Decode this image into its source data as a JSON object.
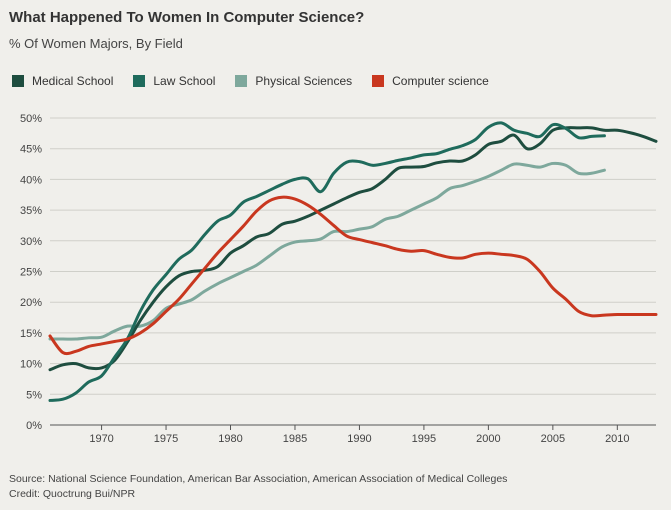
{
  "title": "What Happened To Women In Computer Science?",
  "subtitle": "% Of Women Majors, By Field",
  "source": {
    "line1": "Source: National Science Foundation, American Bar Association, American Association of Medical Colleges",
    "line2": "Credit: Quoctrung Bui/NPR"
  },
  "chart_data": {
    "type": "line",
    "title": "What Happened To Women In Computer Science?",
    "subtitle": "% Of Women Majors, By Field",
    "xlabel": "",
    "ylabel": "",
    "xlim": [
      1966,
      2013
    ],
    "ylim": [
      0,
      50
    ],
    "x_ticks": [
      1970,
      1975,
      1980,
      1985,
      1990,
      1995,
      2000,
      2005,
      2010
    ],
    "y_ticks": [
      0,
      5,
      10,
      15,
      20,
      25,
      30,
      35,
      40,
      45,
      50
    ],
    "y_tick_labels": [
      "0%",
      "5%",
      "10%",
      "15%",
      "20%",
      "25%",
      "30%",
      "35%",
      "40%",
      "45%",
      "50%"
    ],
    "grid": "horizontal",
    "legend_position": "top-left",
    "series": [
      {
        "name": "Medical School",
        "color": "#1e4d3f",
        "points": [
          [
            1966,
            9
          ],
          [
            1967,
            9.8
          ],
          [
            1968,
            10
          ],
          [
            1969,
            9.3
          ],
          [
            1970,
            9.3
          ],
          [
            1971,
            10.5
          ],
          [
            1972,
            13.5
          ],
          [
            1973,
            17
          ],
          [
            1974,
            20
          ],
          [
            1975,
            22.5
          ],
          [
            1976,
            24.3
          ],
          [
            1977,
            25
          ],
          [
            1978,
            25.2
          ],
          [
            1979,
            25.8
          ],
          [
            1980,
            28
          ],
          [
            1981,
            29.2
          ],
          [
            1982,
            30.6
          ],
          [
            1983,
            31.2
          ],
          [
            1984,
            32.7
          ],
          [
            1985,
            33.2
          ],
          [
            1986,
            34
          ],
          [
            1987,
            35
          ],
          [
            1988,
            36
          ],
          [
            1989,
            37
          ],
          [
            1990,
            37.9
          ],
          [
            1991,
            38.5
          ],
          [
            1992,
            40
          ],
          [
            1993,
            41.8
          ],
          [
            1994,
            42
          ],
          [
            1995,
            42.1
          ],
          [
            1996,
            42.7
          ],
          [
            1997,
            43
          ],
          [
            1998,
            43
          ],
          [
            1999,
            44
          ],
          [
            2000,
            45.7
          ],
          [
            2001,
            46.2
          ],
          [
            2002,
            47.2
          ],
          [
            2003,
            45
          ],
          [
            2004,
            45.8
          ],
          [
            2005,
            48
          ],
          [
            2006,
            48.4
          ],
          [
            2007,
            48.4
          ],
          [
            2008,
            48.4
          ],
          [
            2009,
            48
          ],
          [
            2010,
            48
          ],
          [
            2011,
            47.6
          ],
          [
            2012,
            47
          ],
          [
            2013,
            46.2
          ]
        ]
      },
      {
        "name": "Law School",
        "color": "#1f6b5c",
        "points": [
          [
            1966,
            4
          ],
          [
            1967,
            4.2
          ],
          [
            1968,
            5.2
          ],
          [
            1969,
            7
          ],
          [
            1970,
            8
          ],
          [
            1971,
            11
          ],
          [
            1972,
            14
          ],
          [
            1973,
            18.5
          ],
          [
            1974,
            22
          ],
          [
            1975,
            24.5
          ],
          [
            1976,
            27
          ],
          [
            1977,
            28.5
          ],
          [
            1978,
            31
          ],
          [
            1979,
            33.2
          ],
          [
            1980,
            34.2
          ],
          [
            1981,
            36.3
          ],
          [
            1982,
            37.2
          ],
          [
            1983,
            38.2
          ],
          [
            1984,
            39.2
          ],
          [
            1985,
            40
          ],
          [
            1986,
            40.1
          ],
          [
            1987,
            38
          ],
          [
            1988,
            41
          ],
          [
            1989,
            42.8
          ],
          [
            1990,
            42.9
          ],
          [
            1991,
            42.3
          ],
          [
            1992,
            42.6
          ],
          [
            1993,
            43.1
          ],
          [
            1994,
            43.5
          ],
          [
            1995,
            44
          ],
          [
            1996,
            44.2
          ],
          [
            1997,
            44.9
          ],
          [
            1998,
            45.5
          ],
          [
            1999,
            46.5
          ],
          [
            2000,
            48.5
          ],
          [
            2001,
            49.2
          ],
          [
            2002,
            48
          ],
          [
            2003,
            47.5
          ],
          [
            2004,
            47
          ],
          [
            2005,
            48.9
          ],
          [
            2006,
            48.3
          ],
          [
            2007,
            46.8
          ],
          [
            2008,
            47
          ],
          [
            2009,
            47.1
          ]
        ]
      },
      {
        "name": "Physical Sciences",
        "color": "#7ea89c",
        "points": [
          [
            1966,
            14
          ],
          [
            1967,
            14
          ],
          [
            1968,
            14
          ],
          [
            1969,
            14.2
          ],
          [
            1970,
            14.3
          ],
          [
            1971,
            15.3
          ],
          [
            1972,
            16.1
          ],
          [
            1973,
            16.1
          ],
          [
            1974,
            17
          ],
          [
            1975,
            19
          ],
          [
            1976,
            19.7
          ],
          [
            1977,
            20.4
          ],
          [
            1978,
            21.8
          ],
          [
            1979,
            23
          ],
          [
            1980,
            24
          ],
          [
            1981,
            25
          ],
          [
            1982,
            26
          ],
          [
            1983,
            27.5
          ],
          [
            1984,
            29
          ],
          [
            1985,
            29.8
          ],
          [
            1986,
            30
          ],
          [
            1987,
            30.3
          ],
          [
            1988,
            31.5
          ],
          [
            1989,
            31.5
          ],
          [
            1990,
            31.9
          ],
          [
            1991,
            32.3
          ],
          [
            1992,
            33.5
          ],
          [
            1993,
            34
          ],
          [
            1994,
            35
          ],
          [
            1995,
            36
          ],
          [
            1996,
            37
          ],
          [
            1997,
            38.5
          ],
          [
            1998,
            39
          ],
          [
            1999,
            39.7
          ],
          [
            2000,
            40.5
          ],
          [
            2001,
            41.5
          ],
          [
            2002,
            42.5
          ],
          [
            2003,
            42.3
          ],
          [
            2004,
            42
          ],
          [
            2005,
            42.6
          ],
          [
            2006,
            42.3
          ],
          [
            2007,
            41
          ],
          [
            2008,
            41
          ],
          [
            2009,
            41.5
          ]
        ]
      },
      {
        "name": "Computer science",
        "color": "#c9371f",
        "points": [
          [
            1966,
            14.5
          ],
          [
            1967,
            11.8
          ],
          [
            1968,
            12
          ],
          [
            1969,
            12.8
          ],
          [
            1970,
            13.2
          ],
          [
            1971,
            13.6
          ],
          [
            1972,
            14
          ],
          [
            1973,
            15
          ],
          [
            1974,
            16.5
          ],
          [
            1975,
            18.5
          ],
          [
            1976,
            20.5
          ],
          [
            1977,
            23
          ],
          [
            1978,
            25.5
          ],
          [
            1979,
            28
          ],
          [
            1980,
            30.2
          ],
          [
            1981,
            32.4
          ],
          [
            1982,
            34.8
          ],
          [
            1983,
            36.5
          ],
          [
            1984,
            37.1
          ],
          [
            1985,
            36.8
          ],
          [
            1986,
            35.8
          ],
          [
            1987,
            34.3
          ],
          [
            1988,
            32.5
          ],
          [
            1989,
            30.8
          ],
          [
            1990,
            30.2
          ],
          [
            1991,
            29.7
          ],
          [
            1992,
            29.2
          ],
          [
            1993,
            28.6
          ],
          [
            1994,
            28.3
          ],
          [
            1995,
            28.4
          ],
          [
            1996,
            27.8
          ],
          [
            1997,
            27.3
          ],
          [
            1998,
            27.2
          ],
          [
            1999,
            27.8
          ],
          [
            2000,
            28
          ],
          [
            2001,
            27.8
          ],
          [
            2002,
            27.6
          ],
          [
            2003,
            27
          ],
          [
            2004,
            25
          ],
          [
            2005,
            22.3
          ],
          [
            2006,
            20.5
          ],
          [
            2007,
            18.5
          ],
          [
            2008,
            17.8
          ],
          [
            2009,
            17.9
          ],
          [
            2010,
            18
          ],
          [
            2011,
            18
          ],
          [
            2012,
            18
          ],
          [
            2013,
            18
          ]
        ]
      }
    ]
  }
}
